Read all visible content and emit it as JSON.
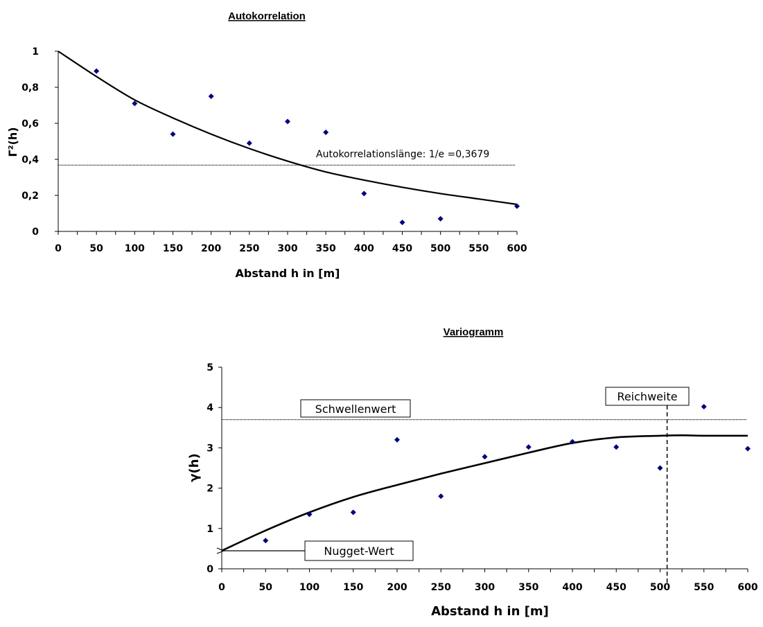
{
  "chart_data": [
    {
      "type": "scatter",
      "title": "Autokorrelation",
      "xlabel": "Abstand h in [m]",
      "ylabel": "Γ²(h)",
      "xlim": [
        0,
        600
      ],
      "ylim": [
        0,
        1
      ],
      "x_ticks": [
        "0",
        "50",
        "100",
        "150",
        "200",
        "250",
        "300",
        "350",
        "400",
        "450",
        "500",
        "550",
        "600"
      ],
      "y_ticks": [
        "0",
        "0,2",
        "0,4",
        "0,6",
        "0,8",
        "1"
      ],
      "series": [
        {
          "kind": "points",
          "x": [
            50,
            100,
            150,
            200,
            250,
            300,
            350,
            400,
            450,
            500,
            600
          ],
          "y": [
            0.89,
            0.71,
            0.54,
            0.75,
            0.49,
            0.61,
            0.55,
            0.21,
            0.05,
            0.07,
            0.14
          ]
        },
        {
          "kind": "curve",
          "x": [
            0,
            50,
            100,
            150,
            200,
            250,
            300,
            350,
            400,
            450,
            500,
            550,
            600
          ],
          "y": [
            1.0,
            0.86,
            0.73,
            0.63,
            0.54,
            0.46,
            0.39,
            0.33,
            0.285,
            0.245,
            0.21,
            0.18,
            0.15
          ]
        }
      ],
      "reference_line": {
        "y": 0.3679,
        "style": "dotted"
      },
      "annotation": "Autokorrelationslänge: 1/e =0,3679",
      "grid": false,
      "legend": "none"
    },
    {
      "type": "scatter",
      "title": "Variogramm",
      "xlabel": "Abstand h in [m]",
      "ylabel": "γ(h)",
      "xlim": [
        0,
        600
      ],
      "ylim": [
        0,
        5
      ],
      "x_ticks": [
        "0",
        "50",
        "100",
        "150",
        "200",
        "250",
        "300",
        "350",
        "400",
        "450",
        "500",
        "550",
        "600"
      ],
      "y_ticks": [
        "0",
        "1",
        "2",
        "3",
        "4",
        "5"
      ],
      "series": [
        {
          "kind": "points",
          "x": [
            50,
            100,
            150,
            200,
            250,
            300,
            350,
            400,
            450,
            500,
            550,
            600
          ],
          "y": [
            0.7,
            1.35,
            1.4,
            3.2,
            1.8,
            2.78,
            3.02,
            3.15,
            3.02,
            2.5,
            4.02,
            2.98
          ]
        },
        {
          "kind": "curve",
          "x": [
            0,
            50,
            100,
            150,
            200,
            250,
            300,
            350,
            400,
            450,
            500,
            525,
            550,
            600
          ],
          "y": [
            0.45,
            0.95,
            1.4,
            1.78,
            2.08,
            2.36,
            2.62,
            2.88,
            3.12,
            3.26,
            3.3,
            3.31,
            3.3,
            3.3
          ]
        }
      ],
      "reference_line": {
        "y": 3.7,
        "style": "dotted"
      },
      "reference_vline": {
        "x": 508,
        "style": "dashed"
      },
      "annotations": {
        "sill": "Schwellenwert",
        "range": "Reichweite",
        "nugget": "Nugget-Wert"
      },
      "grid": false,
      "legend": "none"
    }
  ],
  "colors": {
    "points": "#000080",
    "curve": "#000000"
  }
}
